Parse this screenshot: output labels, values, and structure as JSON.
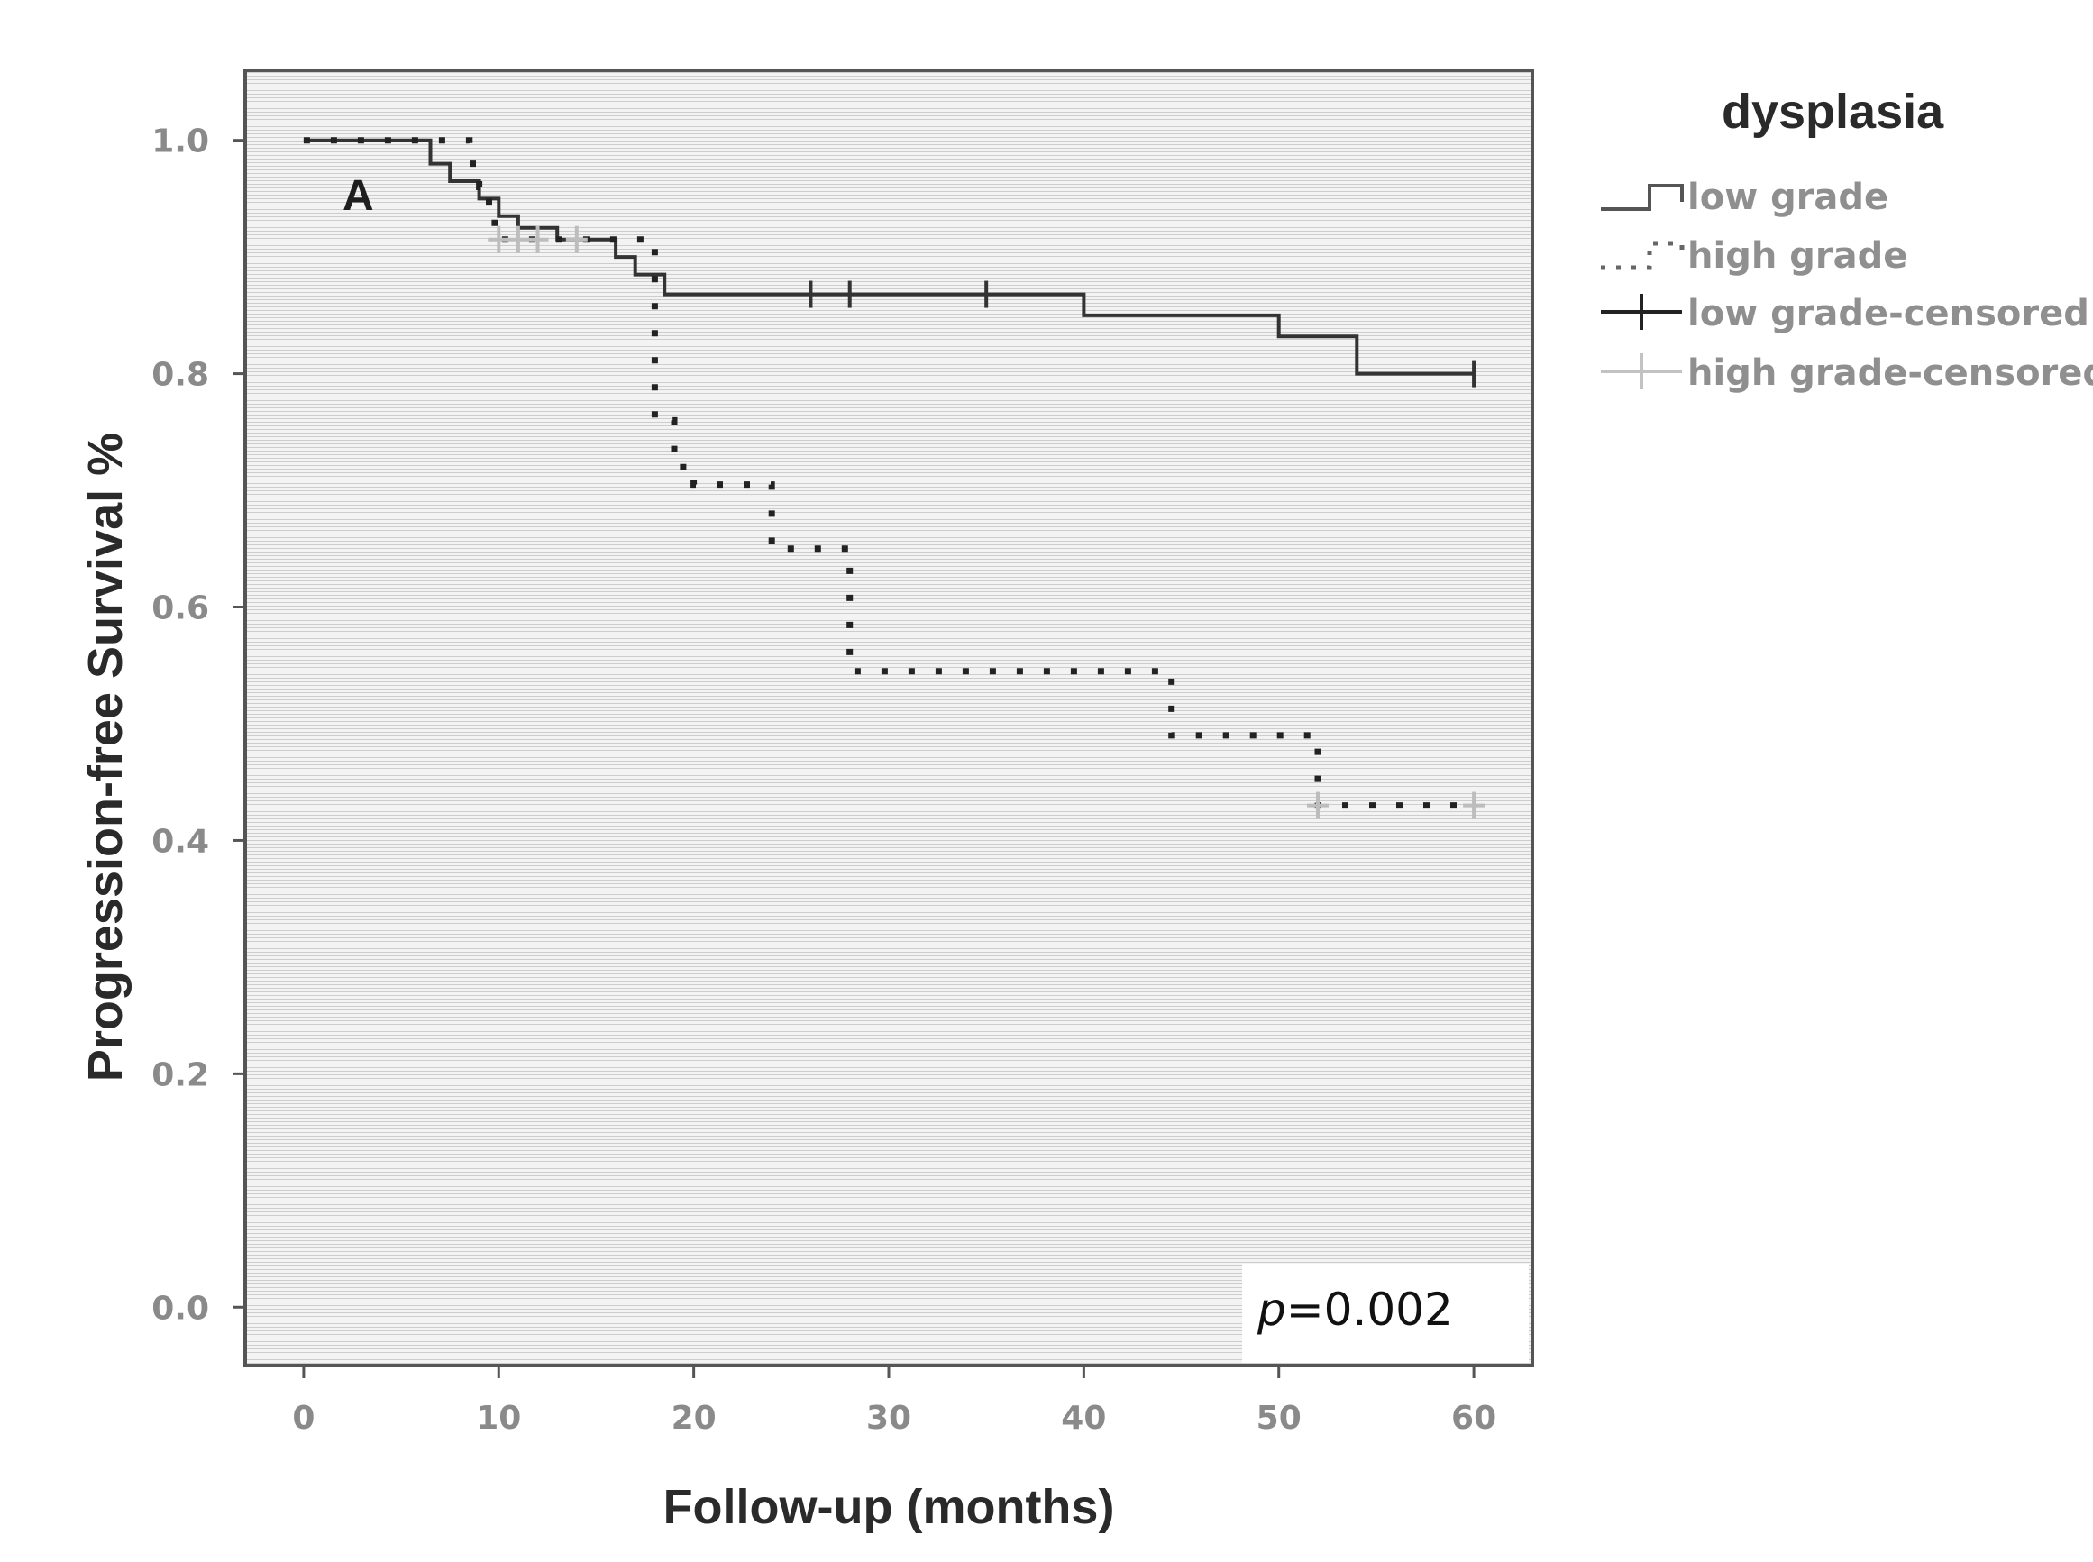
{
  "chart_data": {
    "type": "line",
    "subtype": "kaplan-meier",
    "panel_label": "A",
    "xlabel": "Follow-up (months)",
    "ylabel": "Progression-free Survival %",
    "xlim": [
      -3,
      63
    ],
    "ylim": [
      -0.05,
      1.06
    ],
    "xticks": [
      0,
      10,
      20,
      30,
      40,
      50,
      60
    ],
    "xtick_labels": [
      "0",
      "10",
      "20",
      "30",
      "40",
      "50",
      "60"
    ],
    "yticks": [
      0.0,
      0.2,
      0.4,
      0.6,
      0.8,
      1.0
    ],
    "ytick_labels": [
      "0.0",
      "0.2",
      "0.4",
      "0.6",
      "0.8",
      "1.0"
    ],
    "legend": {
      "title": "dysplasia",
      "position": "right",
      "entries": [
        {
          "label": "low grade",
          "style": "solid-step"
        },
        {
          "label": "high grade",
          "style": "dotted-step"
        },
        {
          "label": "low grade-censored",
          "style": "censor-mark"
        },
        {
          "label": "high grade-censored",
          "style": "censor-mark"
        }
      ]
    },
    "annotation": {
      "italic": "p",
      "text": "=0.002"
    },
    "series": [
      {
        "name": "low grade",
        "style": "solid",
        "color": "#333333",
        "points": [
          [
            0,
            1.0
          ],
          [
            6.5,
            1.0
          ],
          [
            6.5,
            0.98
          ],
          [
            7.5,
            0.98
          ],
          [
            7.5,
            0.965
          ],
          [
            9,
            0.965
          ],
          [
            9,
            0.95
          ],
          [
            10,
            0.95
          ],
          [
            10,
            0.935
          ],
          [
            11,
            0.935
          ],
          [
            11,
            0.925
          ],
          [
            13,
            0.925
          ],
          [
            13,
            0.915
          ],
          [
            16,
            0.915
          ],
          [
            16,
            0.9
          ],
          [
            17,
            0.9
          ],
          [
            17,
            0.885
          ],
          [
            18.5,
            0.885
          ],
          [
            18.5,
            0.868
          ],
          [
            40,
            0.868
          ],
          [
            40,
            0.85
          ],
          [
            50,
            0.85
          ],
          [
            50,
            0.832
          ],
          [
            54,
            0.832
          ],
          [
            54,
            0.8
          ],
          [
            60,
            0.8
          ]
        ],
        "censored": [
          [
            26,
            0.868
          ],
          [
            28,
            0.868
          ],
          [
            35,
            0.868
          ],
          [
            60,
            0.8
          ]
        ]
      },
      {
        "name": "high grade",
        "style": "dotted",
        "color": "#222222",
        "points": [
          [
            0,
            1.0
          ],
          [
            8.5,
            1.0
          ],
          [
            8.5,
            0.98
          ],
          [
            9,
            0.98
          ],
          [
            9,
            0.96
          ],
          [
            9.5,
            0.96
          ],
          [
            9.5,
            0.94
          ],
          [
            9.8,
            0.94
          ],
          [
            9.8,
            0.915
          ],
          [
            18,
            0.915
          ],
          [
            18,
            0.76
          ],
          [
            19,
            0.76
          ],
          [
            19,
            0.72
          ],
          [
            20,
            0.72
          ],
          [
            20,
            0.705
          ],
          [
            24,
            0.705
          ],
          [
            24,
            0.65
          ],
          [
            28,
            0.65
          ],
          [
            28,
            0.545
          ],
          [
            44.5,
            0.545
          ],
          [
            44.5,
            0.49
          ],
          [
            52,
            0.49
          ],
          [
            52,
            0.43
          ],
          [
            60,
            0.43
          ]
        ],
        "censored": [
          [
            10,
            0.915
          ],
          [
            11,
            0.915
          ],
          [
            12,
            0.915
          ],
          [
            14,
            0.915
          ],
          [
            52,
            0.43
          ],
          [
            60,
            0.43
          ]
        ]
      }
    ]
  }
}
